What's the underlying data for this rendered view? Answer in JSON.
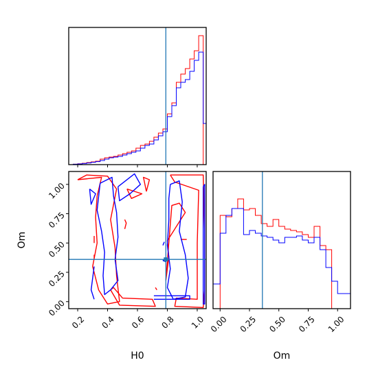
{
  "chart_data": {
    "type": "corner",
    "colors": {
      "red_series": "#ff0000",
      "blue_series": "#0000ff",
      "truth": "#1f77b4",
      "frame": "#000000"
    },
    "truth": {
      "H0": 0.79,
      "Om": 0.36
    },
    "axes": {
      "H0": {
        "label": "H0",
        "ticks": [
          "0.2",
          "0.4",
          "0.6",
          "0.8",
          "1.0"
        ],
        "range": [
          0.14,
          1.06
        ]
      },
      "Om": {
        "label": "Om",
        "ticks": [
          "0.00",
          "0.25",
          "0.50",
          "0.75",
          "1.00"
        ],
        "range": [
          -0.06,
          1.11
        ]
      }
    },
    "hist_H0": {
      "edges": [
        0.14,
        0.17,
        0.2,
        0.23,
        0.26,
        0.29,
        0.32,
        0.35,
        0.38,
        0.41,
        0.44,
        0.47,
        0.5,
        0.53,
        0.56,
        0.59,
        0.62,
        0.65,
        0.68,
        0.71,
        0.74,
        0.77,
        0.8,
        0.83,
        0.86,
        0.89,
        0.92,
        0.95,
        0.98,
        1.01,
        1.04,
        1.06
      ],
      "series": [
        {
          "name": "red",
          "values": [
            0,
            0.003,
            0.006,
            0.01,
            0.015,
            0.02,
            0.025,
            0.04,
            0.05,
            0.055,
            0.06,
            0.07,
            0.08,
            0.09,
            0.1,
            0.12,
            0.14,
            0.15,
            0.17,
            0.2,
            0.23,
            0.26,
            0.37,
            0.45,
            0.6,
            0.66,
            0.7,
            0.77,
            0.83,
            0.94,
            0
          ]
        },
        {
          "name": "blue",
          "values": [
            0,
            0.003,
            0.005,
            0.008,
            0.012,
            0.017,
            0.022,
            0.03,
            0.04,
            0.05,
            0.055,
            0.06,
            0.07,
            0.08,
            0.09,
            0.1,
            0.12,
            0.14,
            0.15,
            0.18,
            0.21,
            0.24,
            0.35,
            0.43,
            0.56,
            0.6,
            0.62,
            0.68,
            0.76,
            0.82,
            0.3
          ]
        }
      ]
    },
    "hist_Om": {
      "edges": [
        -0.06,
        0.0,
        0.05,
        0.1,
        0.15,
        0.2,
        0.25,
        0.3,
        0.35,
        0.4,
        0.45,
        0.5,
        0.55,
        0.6,
        0.65,
        0.7,
        0.75,
        0.8,
        0.85,
        0.9,
        0.95,
        1.0,
        1.05,
        1.11
      ],
      "series": [
        {
          "name": "red",
          "values": [
            0,
            0.68,
            0.67,
            0.73,
            0.8,
            0.72,
            0.73,
            0.68,
            0.62,
            0.6,
            0.65,
            0.6,
            0.58,
            0.57,
            0.56,
            0.54,
            0.52,
            0.6,
            0.46,
            0.43,
            0.0,
            0,
            0
          ]
        },
        {
          "name": "blue",
          "values": [
            0.18,
            0.55,
            0.68,
            0.73,
            0.73,
            0.54,
            0.57,
            0.55,
            0.53,
            0.52,
            0.5,
            0.48,
            0.52,
            0.52,
            0.53,
            0.5,
            0.48,
            0.52,
            0.43,
            0.3,
            0.2,
            0.11,
            0.11
          ]
        }
      ]
    },
    "contours": {
      "red": [
        [
          [
            0.2,
            1.04
          ],
          [
            0.36,
            1.06
          ],
          [
            0.33,
            0.9
          ],
          [
            0.32,
            0.72
          ],
          [
            0.33,
            0.5
          ],
          [
            0.3,
            0.3
          ],
          [
            0.34,
            0.1
          ],
          [
            0.4,
            -0.02
          ],
          [
            0.48,
            0.0
          ],
          [
            0.46,
            0.22
          ],
          [
            0.45,
            0.46
          ],
          [
            0.42,
            0.7
          ],
          [
            0.46,
            0.96
          ],
          [
            0.4,
            1.07
          ],
          [
            0.26,
            1.08
          ],
          [
            0.2,
            1.04
          ]
        ],
        [
          [
            0.42,
            0.1
          ],
          [
            0.48,
            -0.03
          ],
          [
            0.72,
            -0.04
          ],
          [
            0.7,
            0.02
          ],
          [
            0.5,
            0.03
          ],
          [
            0.44,
            0.12
          ],
          [
            0.42,
            0.1
          ]
        ],
        [
          [
            0.82,
            1.08
          ],
          [
            1.04,
            1.08
          ],
          [
            1.05,
            0.6
          ],
          [
            1.05,
            0.1
          ],
          [
            1.04,
            -0.05
          ],
          [
            0.85,
            -0.04
          ],
          [
            0.86,
            0.03
          ],
          [
            1.0,
            0.02
          ],
          [
            1.0,
            0.5
          ],
          [
            1.01,
            0.95
          ],
          [
            0.85,
            1.02
          ],
          [
            0.82,
            1.08
          ]
        ],
        [
          [
            0.79,
            0.18
          ],
          [
            0.81,
            0.38
          ],
          [
            0.8,
            0.52
          ],
          [
            0.84,
            0.6
          ],
          [
            0.92,
            0.76
          ],
          [
            0.88,
            0.84
          ],
          [
            0.83,
            0.82
          ],
          [
            0.82,
            0.66
          ],
          [
            0.79,
            0.18
          ]
        ],
        [
          [
            0.89,
            0.53
          ],
          [
            0.93,
            0.53
          ]
        ],
        [
          [
            0.515,
            0.62
          ],
          [
            0.525,
            0.67
          ],
          [
            0.515,
            0.7
          ]
        ],
        [
          [
            0.53,
            0.96
          ],
          [
            0.63,
            0.92
          ],
          [
            0.56,
            0.88
          ],
          [
            0.53,
            0.96
          ]
        ],
        [
          [
            0.66,
            0.94
          ],
          [
            0.68,
            1.04
          ],
          [
            0.64,
            1.06
          ],
          [
            0.66,
            0.94
          ]
        ],
        [
          [
            0.72,
            0.12
          ],
          [
            0.73,
            0.1
          ]
        ],
        [
          [
            0.31,
            0.5
          ],
          [
            0.31,
            0.56
          ]
        ],
        [
          [
            0.31,
            0.37
          ],
          [
            0.31,
            0.4
          ]
        ]
      ],
      "blue": [
        [
          [
            0.35,
            1.01
          ],
          [
            0.43,
            1.06
          ],
          [
            0.44,
            0.9
          ],
          [
            0.46,
            0.76
          ],
          [
            0.47,
            0.55
          ],
          [
            0.45,
            0.36
          ],
          [
            0.47,
            0.18
          ],
          [
            0.42,
            0.1
          ],
          [
            0.38,
            0.06
          ],
          [
            0.37,
            0.22
          ],
          [
            0.38,
            0.42
          ],
          [
            0.36,
            0.6
          ],
          [
            0.33,
            0.78
          ],
          [
            0.35,
            1.01
          ]
        ],
        [
          [
            0.47,
            0.98
          ],
          [
            0.58,
            1.09
          ],
          [
            0.62,
            1.0
          ],
          [
            0.55,
            0.92
          ],
          [
            0.48,
            0.86
          ],
          [
            0.47,
            0.98
          ]
        ],
        [
          [
            0.28,
            0.96
          ],
          [
            0.32,
            0.92
          ],
          [
            0.29,
            0.83
          ],
          [
            0.28,
            0.96
          ]
        ],
        [
          [
            0.31,
            0.3
          ],
          [
            0.29,
            0.1
          ],
          [
            0.31,
            0.02
          ]
        ],
        [
          [
            0.82,
            1.0
          ],
          [
            0.88,
            1.03
          ],
          [
            0.9,
            0.85
          ],
          [
            0.88,
            0.6
          ],
          [
            0.92,
            0.4
          ],
          [
            0.94,
            0.2
          ],
          [
            0.92,
            0.04
          ],
          [
            0.84,
            0.02
          ],
          [
            0.8,
            0.12
          ],
          [
            0.82,
            0.28
          ],
          [
            0.8,
            0.48
          ],
          [
            0.81,
            0.7
          ],
          [
            0.81,
            0.88
          ],
          [
            0.82,
            1.0
          ]
        ],
        [
          [
            1.04,
            0.98
          ],
          [
            1.05,
            1.0
          ],
          [
            1.05,
            -0.02
          ],
          [
            1.04,
            -0.02
          ],
          [
            1.04,
            0.98
          ]
        ],
        [
          [
            0.71,
            0.05
          ],
          [
            0.95,
            0.05
          ],
          [
            0.95,
            0.02
          ],
          [
            0.71,
            0.02
          ]
        ],
        [
          [
            0.77,
            0.48
          ],
          [
            0.78,
            0.51
          ]
        ],
        [
          [
            0.77,
            0.35
          ],
          [
            0.79,
            0.37
          ],
          [
            0.79,
            0.34
          ],
          [
            0.77,
            0.35
          ]
        ]
      ]
    }
  }
}
